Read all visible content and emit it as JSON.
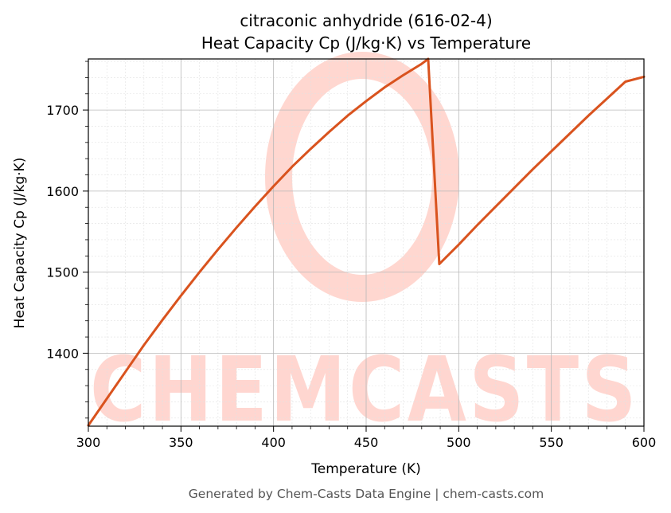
{
  "chart_data": {
    "type": "line",
    "title": "citraconic anhydride (616-02-4)",
    "subtitle": "Heat Capacity Cp (J/kg·K) vs Temperature",
    "xlabel": "Temperature (K)",
    "ylabel": "Heat Capacity Cp (J/kg·K)",
    "xlim": [
      300,
      600
    ],
    "ylim": [
      1310,
      1763
    ],
    "x_ticks": [
      300,
      350,
      400,
      450,
      500,
      550,
      600
    ],
    "y_ticks": [
      1400,
      1500,
      1600,
      1700
    ],
    "grid": true,
    "line_color": "#d9531e",
    "series": [
      {
        "x": [
          300,
          310,
          320,
          330,
          340,
          350,
          360,
          370,
          380,
          390,
          400,
          410,
          420,
          430,
          440,
          450,
          460,
          470,
          480,
          483.5,
          489.5,
          500,
          510,
          520,
          530,
          540,
          550,
          560,
          570,
          580,
          590,
          600
        ],
        "values": [
          1311,
          1344,
          1377,
          1410,
          1441,
          1471,
          1500,
          1528,
          1555,
          1581,
          1606,
          1630,
          1652,
          1673,
          1693,
          1711,
          1728,
          1743,
          1757,
          1763,
          1510,
          1534,
          1558,
          1581,
          1604,
          1627,
          1649,
          1671,
          1693,
          1714,
          1735,
          1741
        ]
      }
    ]
  },
  "watermark": {
    "text": "CHEMCASTS",
    "color": "#ffd0c8"
  },
  "footer": "Generated by Chem-Casts Data Engine | chem-casts.com"
}
